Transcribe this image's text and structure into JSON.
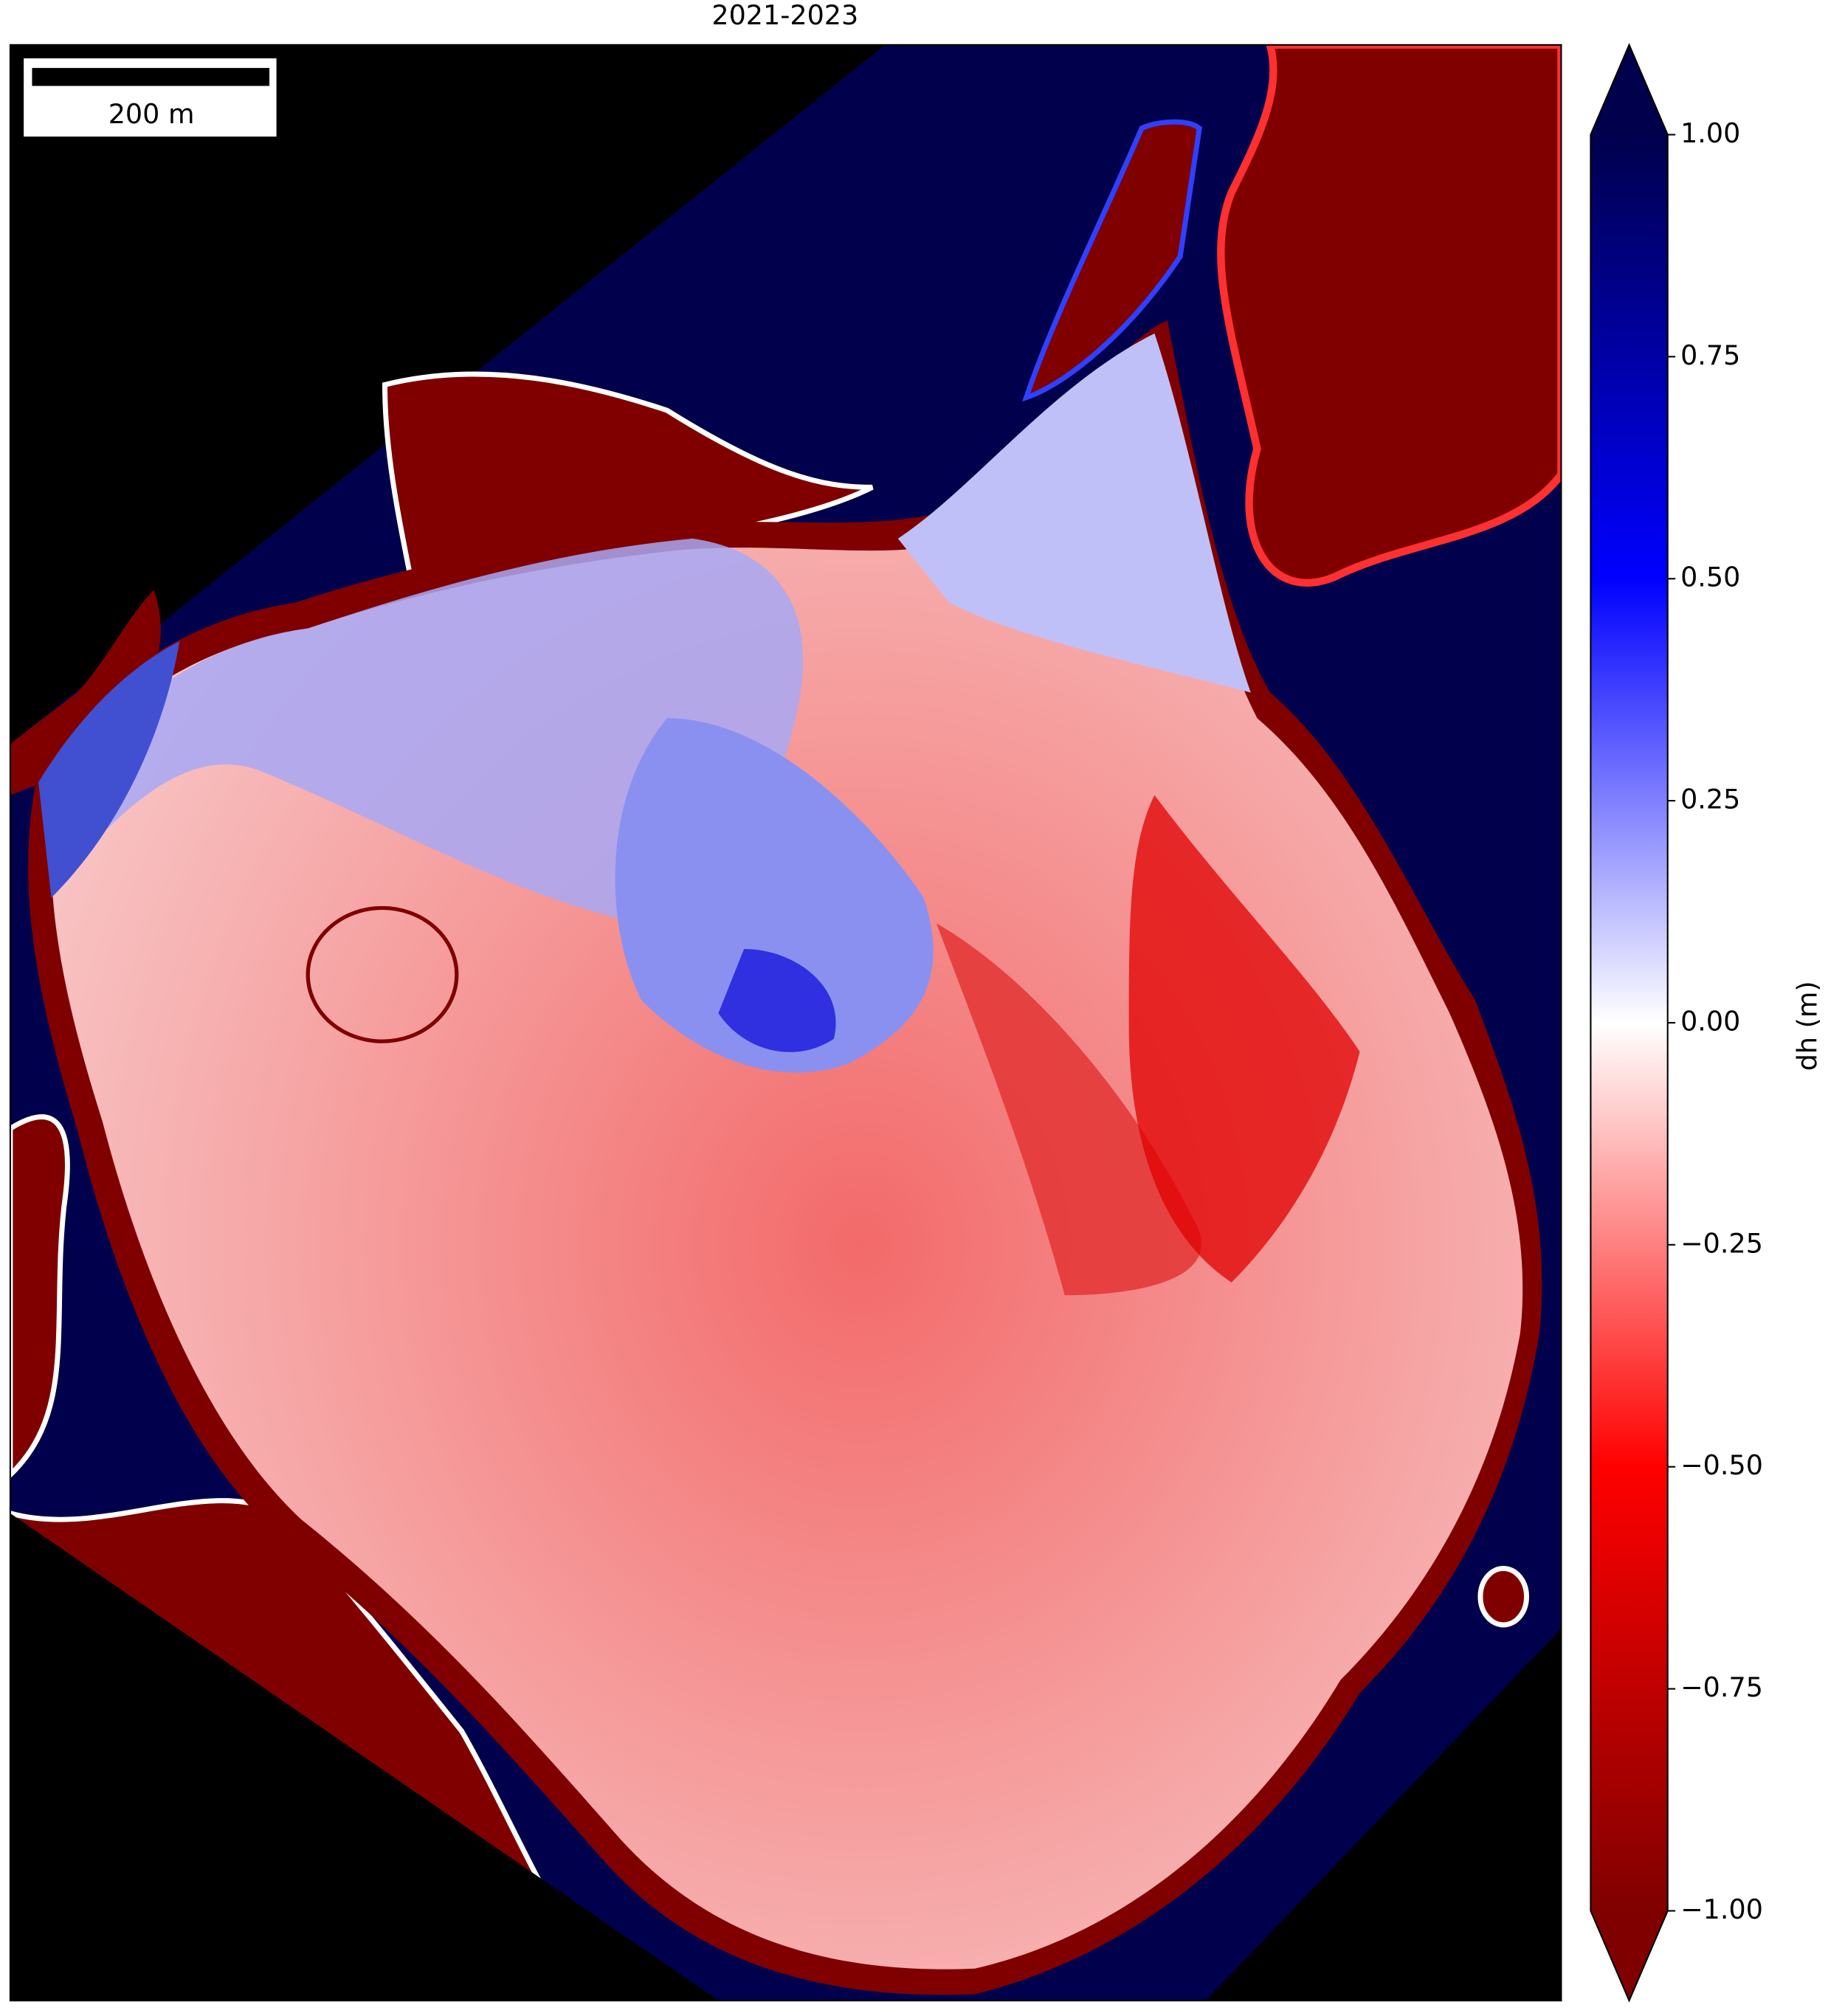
{
  "title": "2021-2023",
  "scale_bar": {
    "label": "200 m"
  },
  "colorbar": {
    "label": "dh (m)",
    "lim": [
      -1,
      1
    ],
    "extend": "both",
    "colors": [
      "#800000",
      "#ff0000",
      "#ffffff",
      "#0000ff",
      "#00004c"
    ],
    "ticks": [
      {
        "value": 1,
        "label": "1.00"
      },
      {
        "value": 0.75,
        "label": "0.75"
      },
      {
        "value": 0.5,
        "label": "0.50"
      },
      {
        "value": 0.25,
        "label": "0.25"
      },
      {
        "value": 0,
        "label": "0.00"
      },
      {
        "value": -0.25,
        "label": "−0.25"
      },
      {
        "value": -0.5,
        "label": "−0.50"
      },
      {
        "value": -0.75,
        "label": "−0.75"
      },
      {
        "value": -1,
        "label": "−1.00"
      }
    ]
  }
}
